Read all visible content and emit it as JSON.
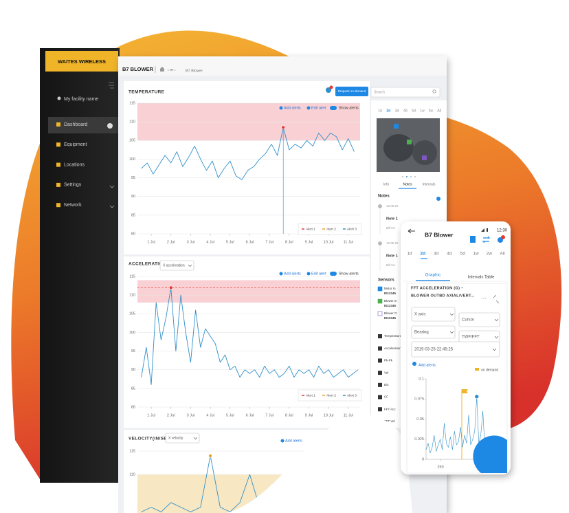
{
  "sidebar": {
    "logo": "WAITES WIRELESS",
    "facility": "My facility name",
    "menu": [
      "Dashboard",
      "Equipment",
      "Locations",
      "Settings",
      "Network"
    ]
  },
  "header": {
    "title": "B7 BLOWER",
    "breadcrumb": "B7 Blower",
    "request_button": "Request on demand",
    "search": "Search"
  },
  "charts": [
    {
      "type": "line",
      "title": "TEMPERATURE",
      "actions": [
        "Add alerts",
        "Edit alert",
        "Show alerts"
      ],
      "xlim": [
        0.3,
        11.6
      ],
      "xticks": [
        {
          "value": 1,
          "label": "1 Jul"
        },
        {
          "value": 2,
          "label": "2 Jul"
        },
        {
          "value": 3,
          "label": "3 Jul"
        },
        {
          "value": 4,
          "label": "4 Jul"
        },
        {
          "value": 5,
          "label": "5 Jul"
        },
        {
          "value": 6,
          "label": "6 Jul"
        },
        {
          "value": 7,
          "label": "7 Jul"
        },
        {
          "value": 8,
          "label": "8 Jul"
        },
        {
          "value": 9,
          "label": "9 Jul"
        },
        {
          "value": 10,
          "label": "10 Jul"
        },
        {
          "value": 11,
          "label": "11 Jul"
        }
      ],
      "ylim": [
        80,
        115
      ],
      "yticks": [
        80,
        85,
        90,
        95,
        100,
        105,
        110,
        115
      ],
      "grid": true,
      "alert_zone": [
        105,
        115
      ],
      "zone_color": "#f8c9cc",
      "series": [
        {
          "color": "#2f8fc9",
          "x": [
            0.5,
            0.8,
            1.1,
            1.4,
            1.7,
            2.0,
            2.3,
            2.6,
            2.9,
            3.2,
            3.5,
            3.8,
            4.1,
            4.4,
            4.7,
            5.0,
            5.3,
            5.6,
            5.9,
            6.2,
            6.5,
            6.8,
            7.1,
            7.4,
            7.7,
            8.0,
            8.3,
            8.6,
            8.9,
            9.2,
            9.5,
            9.8,
            10.1,
            10.4,
            10.7,
            11.0,
            11.3
          ],
          "values": [
            97.5,
            99,
            96,
            98.5,
            101,
            99,
            102,
            98,
            100.5,
            103.5,
            100,
            97,
            99.5,
            95,
            97.5,
            99.5,
            95.5,
            94.5,
            97,
            98,
            100,
            101.5,
            104,
            101,
            108.5,
            102.5,
            104,
            103,
            105,
            103.5,
            107,
            105,
            107,
            106,
            102.5,
            105.5,
            102
          ]
        }
      ],
      "legend": [
        {
          "name": "Alert 1",
          "color": "#e53935"
        },
        {
          "name": "Alert 2",
          "color": "#f0a020"
        },
        {
          "name": "Alert 3",
          "color": "#2f8fc9"
        }
      ]
    },
    {
      "type": "line",
      "title": "ACCELERATION",
      "selector": "X acceleration",
      "actions": [
        "Add alerts",
        "Edit alert",
        "Show alerts"
      ],
      "xlim": [
        0.3,
        11.6
      ],
      "xticks": [
        {
          "value": 1,
          "label": "1 Jul"
        },
        {
          "value": 2,
          "label": "2 Jul"
        },
        {
          "value": 3,
          "label": "3 Jul"
        },
        {
          "value": 4,
          "label": "4 Jul"
        },
        {
          "value": 5,
          "label": "5 Jul"
        },
        {
          "value": 6,
          "label": "6 Jul"
        },
        {
          "value": 7,
          "label": "7 Jul"
        },
        {
          "value": 8,
          "label": "8 Jul"
        },
        {
          "value": 9,
          "label": "9 Jul"
        },
        {
          "value": 10,
          "label": "10 Jul"
        },
        {
          "value": 11,
          "label": "11 Jul"
        }
      ],
      "ylim": [
        80,
        115
      ],
      "yticks": [
        80,
        85,
        90,
        95,
        100,
        105,
        110,
        115
      ],
      "grid": true,
      "alert_zone": [
        108,
        114
      ],
      "zone_color": "#f8c9cc",
      "alert_level": 112,
      "series": [
        {
          "color": "#2f8fc9",
          "x": [
            0.5,
            0.75,
            1.0,
            1.25,
            1.5,
            1.75,
            2.0,
            2.25,
            2.5,
            2.75,
            3.0,
            3.25,
            3.5,
            3.75,
            4.0,
            4.25,
            4.5,
            4.75,
            5.0,
            5.25,
            5.5,
            5.75,
            6.0,
            6.25,
            6.5,
            6.75,
            7.0,
            7.25,
            7.5,
            7.75,
            8.0,
            8.25,
            8.5,
            8.75,
            9.0,
            9.25,
            9.5,
            9.75,
            10.0,
            10.25,
            10.5,
            10.75,
            11.0,
            11.25,
            11.5
          ],
          "values": [
            88,
            96,
            86,
            108,
            98,
            104,
            112,
            95,
            110,
            100,
            92,
            106,
            96,
            101,
            99,
            97,
            92,
            94,
            90,
            91,
            88,
            90,
            89,
            90,
            88,
            91,
            89,
            90,
            88,
            89,
            91,
            88,
            90,
            89,
            90,
            88,
            91,
            89,
            90,
            88,
            89,
            90,
            88,
            89,
            90
          ]
        }
      ],
      "legend": [
        {
          "name": "Alert 1",
          "color": "#e53935"
        },
        {
          "name": "Alert 2",
          "color": "#f0a020"
        },
        {
          "name": "Alert 3",
          "color": "#2f8fc9"
        }
      ]
    },
    {
      "type": "line",
      "title": "VELOCITY(IN/SEC)",
      "selector": "X velocity",
      "actions": [
        "Add alerts"
      ],
      "xlim": [
        0.3,
        11.6
      ],
      "ylim": [
        100,
        115
      ],
      "yticks": [
        110,
        115
      ],
      "grid": true,
      "alert_zone": [
        100,
        110
      ],
      "zone_color": "#f6e3b8",
      "series": [
        {
          "color": "#2f8fc9",
          "x": [
            0.5,
            1.0,
            1.5,
            2.0,
            2.5,
            3.0,
            3.5,
            4.0,
            4.5,
            5.0,
            5.5,
            6.0,
            6.5,
            7.0,
            7.5,
            8.0,
            8.5
          ],
          "values": [
            102,
            103,
            102,
            104,
            103,
            102,
            103,
            114,
            103,
            102,
            104,
            110,
            103,
            102,
            103,
            102,
            103
          ]
        }
      ]
    }
  ],
  "details": {
    "ranges": [
      "1d",
      "2d",
      "3d",
      "4d",
      "5d",
      "1w",
      "2w",
      "All"
    ],
    "tabs": [
      "Info",
      "Notes",
      "Intervals"
    ],
    "notes_title": "Notes",
    "notes": [
      {
        "date": "12.05.20",
        "title": "Note 1",
        "author": "Bill He"
      },
      {
        "date": "12.05.20",
        "title": "Note 1",
        "author": "Bill He"
      }
    ],
    "sensors_title": "Sensors",
    "sensor_groups": [
      {
        "name": "Motor In",
        "id": "ID12345"
      },
      {
        "name": "Blower In",
        "id": "ID12345"
      },
      {
        "name": "Blower O",
        "id": "ID12345"
      }
    ],
    "sensor_list": [
      "Temperature",
      "Acceleration",
      "Pk-Pk",
      "Vel",
      "Dis",
      "CF",
      "FFT Acc",
      "FFT Vel"
    ]
  },
  "mobile": {
    "time": "12:30",
    "title": "B7 Blower",
    "ranges": [
      "1d",
      "2d",
      "3d",
      "4d",
      "5d",
      "1w",
      "2w",
      "All"
    ],
    "tabs": [
      "Graphic",
      "Intervals Table"
    ],
    "chart_title": [
      "FFT ACCELERATION (G) –",
      "BLOWER OUTBD AXIAL/VERT..."
    ],
    "selects": [
      "X axis",
      "Cursor",
      "Bearing",
      "TWF/FFT"
    ],
    "timestamp": "2019-03-25-22:45:25",
    "add_alerts": "Add alerts",
    "marker_label": "on demand",
    "chart": {
      "type": "line",
      "xlim": [
        0,
        1400
      ],
      "xticks": [
        250
      ],
      "ylim": [
        0,
        0.1
      ],
      "yticks": [
        0,
        0.025,
        0.05,
        0.075,
        0.1
      ],
      "grid": false,
      "series": [
        {
          "color": "#2f8fc9",
          "x": [
            0,
            35,
            70,
            105,
            140,
            175,
            210,
            245,
            280,
            315,
            350,
            385,
            420,
            455,
            490,
            525,
            560,
            595,
            630,
            665,
            700,
            735,
            770,
            805,
            840,
            875,
            910,
            945,
            980,
            1015,
            1050,
            1085,
            1120,
            1155,
            1190,
            1225,
            1260,
            1295,
            1330,
            1365
          ],
          "values": [
            0.012,
            0.02,
            0.008,
            0.015,
            0.03,
            0.01,
            0.018,
            0.025,
            0.012,
            0.045,
            0.02,
            0.015,
            0.028,
            0.012,
            0.035,
            0.018,
            0.022,
            0.04,
            0.015,
            0.03,
            0.02,
            0.055,
            0.018,
            0.025,
            0.035,
            0.078,
            0.02,
            0.03,
            0.06,
            0.015,
            0.025,
            0.012,
            0.02,
            0.01,
            0.015,
            0.008,
            0.012,
            0.01,
            0.008,
            0.01
          ]
        }
      ]
    }
  }
}
